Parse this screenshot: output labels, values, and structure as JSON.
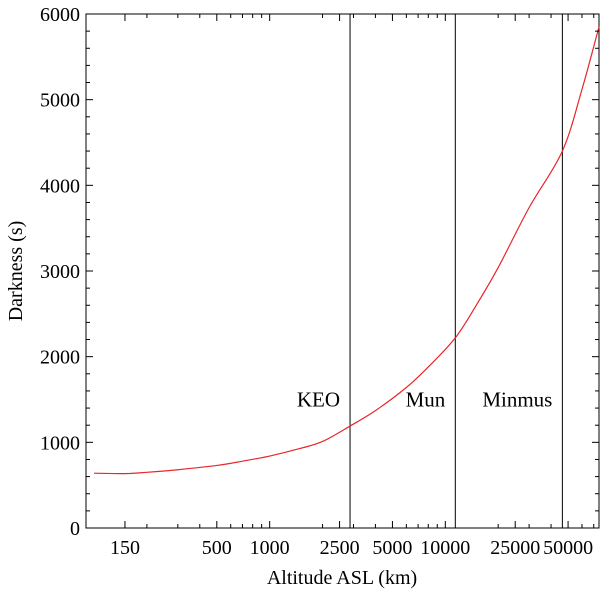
{
  "chart_data": {
    "type": "line",
    "title": "",
    "xlabel": "Altitude ASL (km)",
    "ylabel": "Darkness (s)",
    "x_scale": "log",
    "xlim": [
      90,
      75000
    ],
    "ylim": [
      0,
      6000
    ],
    "grid": false,
    "y_ticks": [
      0,
      1000,
      2000,
      3000,
      4000,
      5000,
      6000
    ],
    "x_tick_labels": [
      {
        "value": 150,
        "label": "150"
      },
      {
        "value": 500,
        "label": "500"
      },
      {
        "value": 1000,
        "label": "1000"
      },
      {
        "value": 2500,
        "label": "2500"
      },
      {
        "value": 5000,
        "label": "5000"
      },
      {
        "value": 10000,
        "label": "10000"
      },
      {
        "value": 25000,
        "label": "25000"
      },
      {
        "value": 50000,
        "label": "50000"
      }
    ],
    "x_minor_ticks": [
      200,
      300,
      400,
      600,
      700,
      800,
      900,
      2000,
      3000,
      4000,
      6000,
      7000,
      8000,
      9000,
      20000,
      30000,
      40000,
      60000,
      70000
    ],
    "series": [
      {
        "color": "#e8262b",
        "x": [
          100,
          150,
          200,
          300,
          500,
          700,
          1000,
          1500,
          2000,
          2868,
          4000,
          6000,
          8000,
          11400,
          15000,
          20000,
          30000,
          46400,
          60000,
          75000
        ],
        "y": [
          640,
          635,
          650,
          680,
          730,
          780,
          840,
          930,
          1010,
          1190,
          1370,
          1640,
          1880,
          2220,
          2600,
          3040,
          3740,
          4400,
          5120,
          5850
        ]
      }
    ],
    "reference_lines": [
      {
        "x": 2868,
        "label": "KEO",
        "label_y": 1500
      },
      {
        "x": 11400,
        "label": "Mun",
        "label_y": 1500
      },
      {
        "x": 46400,
        "label": "Minmus",
        "label_y": 1500
      }
    ]
  }
}
